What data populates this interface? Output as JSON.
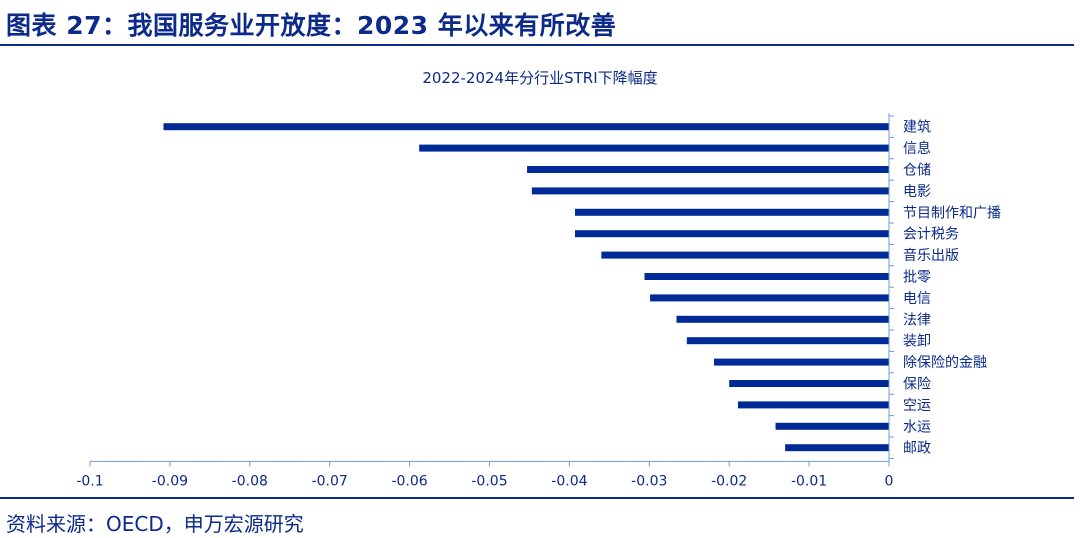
{
  "figure": {
    "title": "图表 27：我国服务业开放度：2023 年以来有所改善",
    "source": "资料来源：OECD，申万宏源研究"
  },
  "colors": {
    "bar": "#002b96",
    "axis": "#6f9bd4",
    "text": "#0b2a8a"
  },
  "chart_data": {
    "type": "bar",
    "orientation": "horizontal",
    "title": "2022-2024年分行业STRI下降幅度",
    "categories": [
      "建筑",
      "信息",
      "仓储",
      "电影",
      "节目制作和广播",
      "会计税务",
      "音乐出版",
      "批零",
      "电信",
      "法律",
      "装卸",
      "除保险的金融",
      "保险",
      "空运",
      "水运",
      "邮政"
    ],
    "values": [
      -0.0908,
      -0.0588,
      -0.0453,
      -0.0447,
      -0.0393,
      -0.0393,
      -0.036,
      -0.0306,
      -0.0299,
      -0.0266,
      -0.0253,
      -0.0219,
      -0.02,
      -0.0189,
      -0.0142,
      -0.013
    ],
    "xlim": [
      -0.1,
      0
    ],
    "xticks": [
      "-0.1",
      "-0.09",
      "-0.08",
      "-0.07",
      "-0.06",
      "-0.05",
      "-0.04",
      "-0.03",
      "-0.02",
      "-0.01",
      "0"
    ],
    "xlabel": "",
    "ylabel": "",
    "grid": false,
    "legend": false,
    "category_axis_position": "right"
  }
}
